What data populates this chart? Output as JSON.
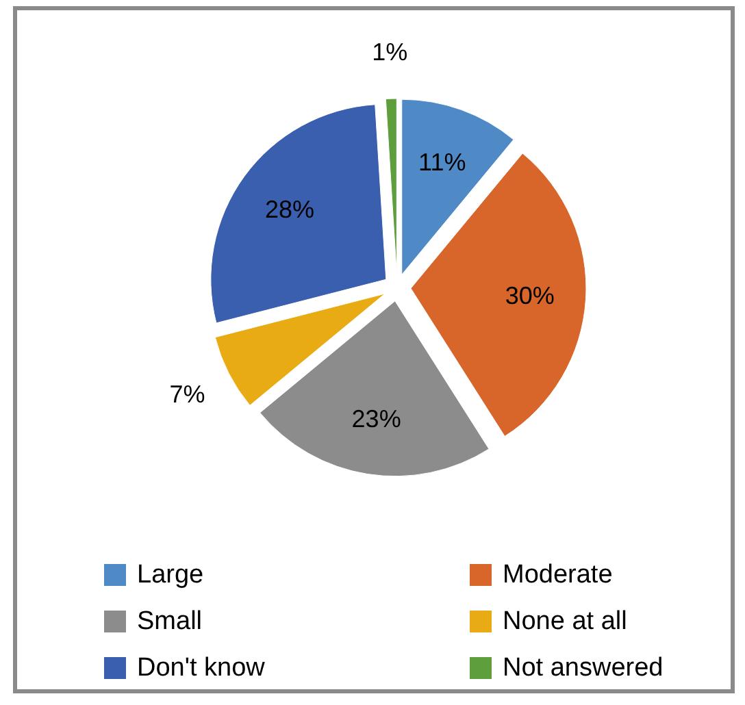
{
  "chart_data": {
    "type": "pie",
    "categories": [
      "Large",
      "Moderate",
      "Small",
      "None at all",
      "Don't know",
      "Not answered"
    ],
    "values": [
      11,
      30,
      23,
      7,
      28,
      1
    ],
    "colors": [
      "#4f8ac6",
      "#d8662a",
      "#8c8c8c",
      "#e9ab13",
      "#3a5fae",
      "#5e9e3c"
    ],
    "value_labels": [
      "11%",
      "30%",
      "23%",
      "7%",
      "28%",
      "1%"
    ],
    "legend": "bottom"
  }
}
